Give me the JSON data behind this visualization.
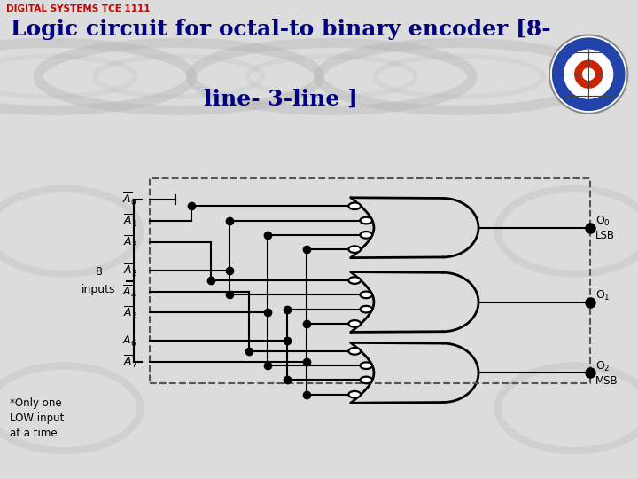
{
  "title_small": "DIGITAL SYSTEMS TCE 1111",
  "title_main_line1": "Logic circuit for octal-to binary encoder [8-",
  "title_main_line2": "line- 3-line ]",
  "title_color": "#000080",
  "title_small_color": "#cc0000",
  "bg_color": "#dcdcdc",
  "red_line_color": "#cc0000",
  "note": "*Only one\nLOW input\nat a time",
  "header_bg": "#c8c8c8"
}
